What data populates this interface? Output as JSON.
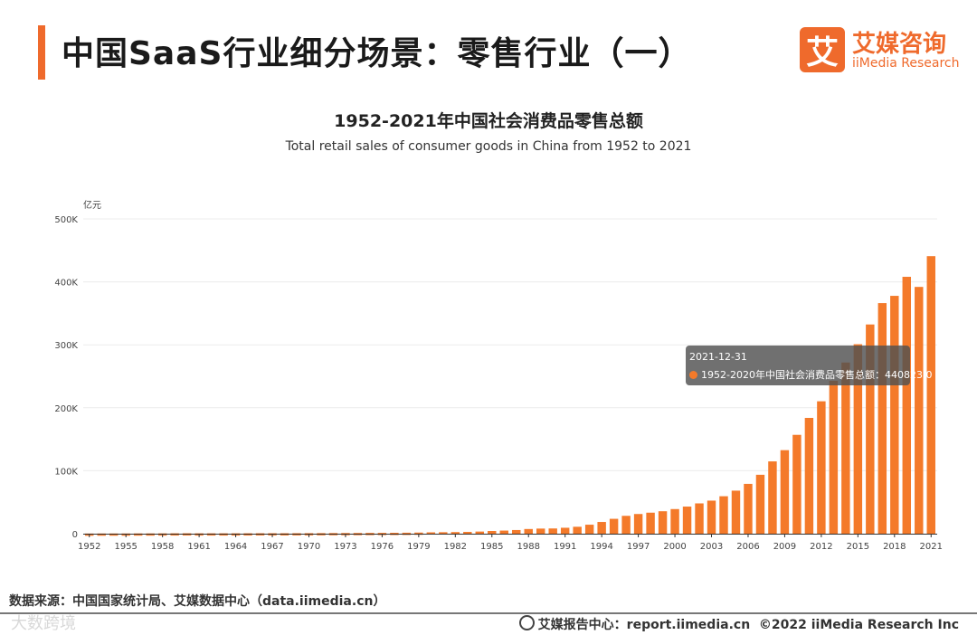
{
  "header": {
    "title": "中国SaaS行业细分场景：零售行业（一）",
    "logo_mark": "艾",
    "logo_cn": "艾媒咨询",
    "logo_en": "iiMedia Research"
  },
  "chart_data": {
    "type": "bar",
    "title": "1952-2021年中国社会消费品零售总额",
    "subtitle": "Total retail sales of consumer goods in China from 1952 to 2021",
    "ylabel": "亿元",
    "xlabel": "",
    "ylim": [
      0,
      500000
    ],
    "ytick_values": [
      0,
      100000,
      200000,
      300000,
      400000,
      500000
    ],
    "ytick_labels": [
      "0",
      "100K",
      "200K",
      "300K",
      "400K",
      "500K"
    ],
    "series_name": "1952-2020年中国社会消费品零售总额",
    "color": "#f47a2a",
    "categories": [
      1952,
      1953,
      1954,
      1955,
      1956,
      1957,
      1958,
      1959,
      1960,
      1961,
      1962,
      1963,
      1964,
      1965,
      1966,
      1967,
      1968,
      1969,
      1970,
      1971,
      1972,
      1973,
      1974,
      1975,
      1976,
      1977,
      1978,
      1979,
      1980,
      1981,
      1982,
      1983,
      1984,
      1985,
      1986,
      1987,
      1988,
      1989,
      1990,
      1991,
      1992,
      1993,
      1994,
      1995,
      1996,
      1997,
      1998,
      1999,
      2000,
      2001,
      2002,
      2003,
      2004,
      2005,
      2006,
      2007,
      2008,
      2009,
      2010,
      2011,
      2012,
      2013,
      2014,
      2015,
      2016,
      2017,
      2018,
      2019,
      2020,
      2021
    ],
    "xtick_labels": [
      "1952",
      "1955",
      "1958",
      "1961",
      "1964",
      "1967",
      "1970",
      "1973",
      "1976",
      "1979",
      "1982",
      "1985",
      "1988",
      "1991",
      "1994",
      "1997",
      "2000",
      "2003",
      "2006",
      "2009",
      "2012",
      "2015",
      "2018",
      "2021"
    ],
    "values": [
      277,
      348,
      381,
      393,
      461,
      474,
      548,
      638,
      697,
      607,
      604,
      605,
      638,
      670,
      732,
      770,
      737,
      802,
      858,
      929,
      1023,
      1106,
      1163,
      1271,
      1339,
      1433,
      1559,
      1800,
      2140,
      2350,
      2570,
      2849,
      3376,
      4305,
      4950,
      5820,
      7440,
      8101,
      8300,
      9416,
      10994,
      14270,
      18623,
      23614,
      28360,
      31253,
      33378,
      35648,
      39106,
      43055,
      48136,
      52516,
      59501,
      68353,
      79145,
      93572,
      114830,
      132678,
      156998,
      183919,
      210307,
      242843,
      271896,
      300931,
      332316,
      366262,
      377783,
      408017,
      391981,
      440823
    ],
    "tooltip": {
      "date": "2021-12-31",
      "label": "1952-2020年中国社会消费品零售总额：440823.0"
    }
  },
  "footer": {
    "source": "数据来源：中国国家统计局、艾媒数据中心（data.iimedia.cn）",
    "report": "艾媒报告中心：report.iimedia.cn",
    "copyright": "©2022 iiMedia Research Inc",
    "watermark": "大数跨境"
  }
}
